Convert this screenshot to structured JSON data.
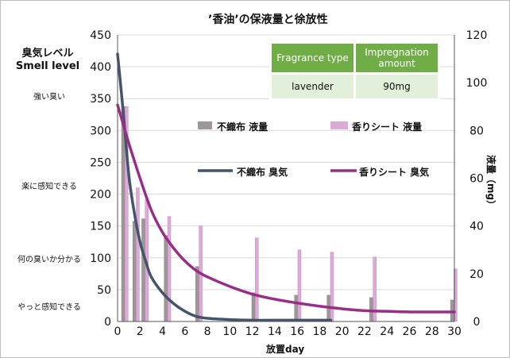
{
  "chart_data": {
    "type": "bar+line",
    "title": "’香油’の保液量と徐放性",
    "xlabel": "放置day",
    "ylabel_left": [
      "臭気レベル",
      "Smell level"
    ],
    "ylabel_right": "液量（mg）",
    "x_ticks": [
      0,
      2,
      4,
      6,
      8,
      10,
      12,
      14,
      16,
      18,
      20,
      22,
      24,
      26,
      28,
      30
    ],
    "xlim": [
      0,
      30
    ],
    "ylim_left": [
      0,
      450
    ],
    "ylim_left_ticks": [
      0,
      50,
      100,
      150,
      200,
      250,
      300,
      350,
      400,
      450
    ],
    "ylim_right": [
      0,
      120
    ],
    "ylim_right_ticks": [
      0,
      20,
      40,
      60,
      80,
      100,
      120
    ],
    "smell_levels": [
      {
        "label": "強い臭い",
        "y": 355
      },
      {
        "label": "楽に感知できる",
        "y": 215
      },
      {
        "label": "何の臭いか分かる",
        "y": 100
      },
      {
        "label": "やっと感知できる",
        "y": 25
      }
    ],
    "bar_series": [
      {
        "name": "不織布 液量",
        "color": "#9d9797",
        "x": [
          0.5,
          1.5,
          2.3,
          4.3,
          7.1,
          12.1,
          15.9,
          18.8,
          22.6,
          29.8
        ],
        "values": [
          90,
          42,
          43,
          36,
          23,
          12,
          11,
          11,
          10,
          9
        ]
      },
      {
        "name": "香りシート 液量",
        "color": "#dcaad7",
        "x": [
          0.8,
          1.8,
          2.6,
          4.6,
          7.4,
          12.4,
          16.2,
          19.1,
          22.9,
          30.1
        ],
        "values": [
          90,
          56,
          51,
          44,
          40,
          35,
          30,
          29,
          27,
          22
        ]
      }
    ],
    "line_series": [
      {
        "name": "不織布 臭気",
        "color": "#44546a",
        "x": [
          0,
          0.5,
          1,
          1.5,
          2,
          2.5,
          3,
          4,
          5,
          6,
          7,
          8,
          10,
          12,
          14,
          16,
          19
        ],
        "values": [
          420,
          330,
          230,
          170,
          125,
          95,
          70,
          45,
          28,
          16,
          8,
          5,
          3,
          2,
          2,
          2,
          2
        ]
      },
      {
        "name": "香りシート 臭気",
        "color": "#992e88",
        "x": [
          0,
          0.5,
          1,
          2,
          3,
          4,
          5,
          6,
          7,
          8,
          10,
          12,
          14,
          16,
          18,
          20,
          22,
          24,
          26,
          28,
          30
        ],
        "values": [
          340,
          310,
          280,
          225,
          175,
          140,
          115,
          95,
          80,
          70,
          55,
          43,
          35,
          29,
          24,
          20,
          17,
          16,
          15,
          15,
          15
        ]
      }
    ]
  },
  "info_table": {
    "headers": [
      "Fragrance type",
      "Impregnation amount"
    ],
    "values": [
      "lavender",
      "90mg"
    ]
  }
}
